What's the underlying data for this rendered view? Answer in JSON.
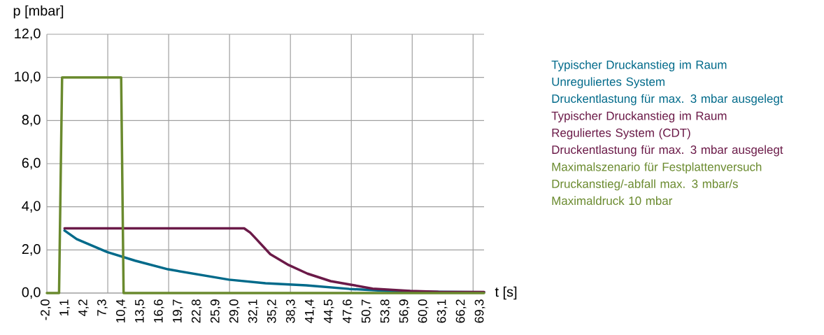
{
  "chart_data": {
    "type": "line",
    "xlabel": "t [s]",
    "ylabel": "p [mbar]",
    "xlim": [
      -2.0,
      69.8
    ],
    "ylim": [
      0,
      12
    ],
    "xticks": [
      {
        "value": -2.0,
        "label": "-2,0"
      },
      {
        "value": 1.1,
        "label": "1,1"
      },
      {
        "value": 4.2,
        "label": "4,2"
      },
      {
        "value": 7.3,
        "label": "7,3"
      },
      {
        "value": 10.4,
        "label": "10,4"
      },
      {
        "value": 13.5,
        "label": "13,5"
      },
      {
        "value": 16.6,
        "label": "16,6"
      },
      {
        "value": 19.7,
        "label": "19,7"
      },
      {
        "value": 22.8,
        "label": "22,8"
      },
      {
        "value": 25.9,
        "label": "25,9"
      },
      {
        "value": 29.0,
        "label": "29,0"
      },
      {
        "value": 32.1,
        "label": "32,1"
      },
      {
        "value": 35.2,
        "label": "35,2"
      },
      {
        "value": 38.3,
        "label": "38,3"
      },
      {
        "value": 41.4,
        "label": "41,4"
      },
      {
        "value": 44.5,
        "label": "44,5"
      },
      {
        "value": 47.6,
        "label": "47,6"
      },
      {
        "value": 50.7,
        "label": "50,7"
      },
      {
        "value": 53.8,
        "label": "53,8"
      },
      {
        "value": 56.9,
        "label": "56,9"
      },
      {
        "value": 60.0,
        "label": "60,0"
      },
      {
        "value": 63.1,
        "label": "63,1"
      },
      {
        "value": 66.2,
        "label": "66,2"
      },
      {
        "value": 69.3,
        "label": "69,3"
      },
      {
        "value": 8,
        "label": null
      },
      {
        "value": 18,
        "label": null
      },
      {
        "value": 28,
        "label": null
      },
      {
        "value": 38,
        "label": null
      },
      {
        "value": 48,
        "label": null
      },
      {
        "value": 58,
        "label": null
      },
      {
        "value": 68,
        "label": null
      }
    ],
    "yticks": [
      {
        "value": 0,
        "label": "0,0"
      },
      {
        "value": 2,
        "label": "2,0"
      },
      {
        "value": 4,
        "label": "4,0"
      },
      {
        "value": 6,
        "label": "6,0"
      },
      {
        "value": 8,
        "label": "8,0"
      },
      {
        "value": 10,
        "label": "10,0"
      },
      {
        "value": 12,
        "label": "12,0"
      }
    ],
    "grid": true,
    "legend": "right",
    "series": [
      {
        "name": "Typischer Druckanstieg im Raum\nUnreguliertes System\nDruckentlastung für max. 3 mbar ausgelegt",
        "color": "#006a8a",
        "x": [
          0.9,
          2.9,
          7.9,
          12.5,
          17.9,
          27.9,
          33.9,
          40.6,
          47.7,
          54.0,
          61.5,
          69.8
        ],
        "values": [
          2.9,
          2.5,
          1.9,
          1.5,
          1.1,
          0.62,
          0.45,
          0.36,
          0.19,
          0.1,
          0.06,
          0.04
        ]
      },
      {
        "name": "Typischer Druckanstieg im Raum\nReguliertes System (CDT)\nDruckentlastung für max. 3 mbar ausgelegt",
        "color": "#6b1a48",
        "x": [
          0.9,
          30.4,
          31.4,
          32.4,
          34.7,
          37.7,
          40.8,
          44.6,
          47.7,
          51.5,
          57.7,
          62.3,
          69.8
        ],
        "values": [
          3,
          3,
          2.8,
          2.5,
          1.8,
          1.3,
          0.9,
          0.55,
          0.4,
          0.2,
          0.1,
          0.06,
          0.05
        ]
      },
      {
        "name": "Maximalszenario für Festplattenversuch\nDruckanstieg/-abfall max. 3 mbar/s\nMaximaldruck 10 mbar",
        "color": "#6a8a2e",
        "x": [
          -2.0,
          0.0,
          0.5,
          10.2,
          10.6,
          69.8
        ],
        "values": [
          0,
          0,
          10,
          10,
          0,
          0
        ]
      }
    ]
  }
}
